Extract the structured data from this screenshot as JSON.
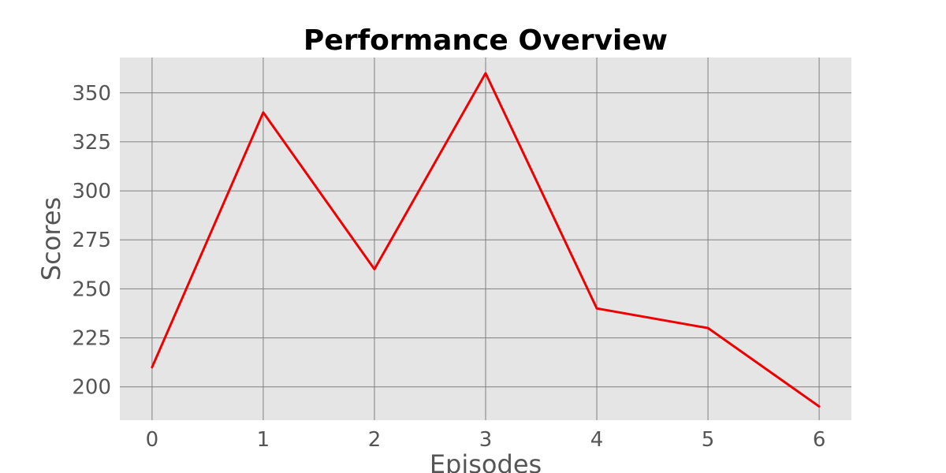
{
  "chart_data": {
    "type": "line",
    "title": "Performance Overview",
    "xlabel": "Episodes",
    "ylabel": "Scores",
    "x": [
      0,
      1,
      2,
      3,
      4,
      5,
      6
    ],
    "series": [
      {
        "values": [
          210,
          340,
          260,
          360,
          240,
          230,
          190
        ],
        "color": "#ee0000"
      }
    ],
    "xlim": [
      -0.29,
      6.29
    ],
    "ylim": [
      183,
      368
    ],
    "xticks": [
      0,
      1,
      2,
      3,
      4,
      5,
      6
    ],
    "yticks": [
      200,
      225,
      250,
      275,
      300,
      325,
      350
    ],
    "grid": true,
    "legend": "none",
    "colors": {
      "plot_background": "#e5e5e5",
      "grid": "#808080",
      "tick_text": "#555555"
    }
  }
}
